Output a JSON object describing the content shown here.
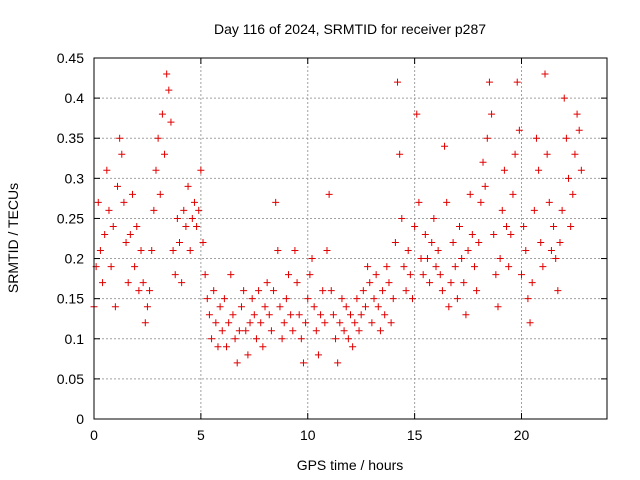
{
  "chart_data": {
    "type": "scatter",
    "title": "Day 116 of 2024, SRMTID for receiver p287",
    "xlabel": "GPS time / hours",
    "ylabel": "SRMTID / TECUs",
    "xlim": [
      0,
      24
    ],
    "ylim": [
      0,
      0.45
    ],
    "x_ticks": [
      0,
      5,
      10,
      15,
      20
    ],
    "x_tick_labels": [
      "0",
      "5",
      "10",
      "15",
      "20"
    ],
    "y_ticks": [
      0,
      0.05,
      0.1,
      0.15,
      0.2,
      0.25,
      0.3,
      0.35,
      0.4,
      0.45
    ],
    "y_tick_labels": [
      "0",
      "0.05",
      "0.1",
      "0.15",
      "0.2",
      "0.25",
      "0.3",
      "0.35",
      "0.4",
      "0.45"
    ],
    "grid": true,
    "marker": "+",
    "color": "#e00000",
    "series": [
      {
        "name": "SRMTID",
        "points": [
          [
            0.0,
            0.14
          ],
          [
            0.1,
            0.19
          ],
          [
            0.2,
            0.27
          ],
          [
            0.3,
            0.21
          ],
          [
            0.4,
            0.17
          ],
          [
            0.5,
            0.23
          ],
          [
            0.6,
            0.31
          ],
          [
            0.7,
            0.26
          ],
          [
            0.8,
            0.19
          ],
          [
            0.9,
            0.24
          ],
          [
            1.0,
            0.14
          ],
          [
            1.1,
            0.29
          ],
          [
            1.2,
            0.35
          ],
          [
            1.3,
            0.33
          ],
          [
            1.4,
            0.27
          ],
          [
            1.5,
            0.22
          ],
          [
            1.6,
            0.17
          ],
          [
            1.7,
            0.23
          ],
          [
            1.8,
            0.28
          ],
          [
            1.9,
            0.19
          ],
          [
            2.0,
            0.24
          ],
          [
            2.1,
            0.16
          ],
          [
            2.2,
            0.21
          ],
          [
            2.3,
            0.17
          ],
          [
            2.4,
            0.12
          ],
          [
            2.5,
            0.14
          ],
          [
            2.6,
            0.16
          ],
          [
            2.7,
            0.21
          ],
          [
            2.8,
            0.26
          ],
          [
            2.9,
            0.31
          ],
          [
            3.0,
            0.35
          ],
          [
            3.1,
            0.28
          ],
          [
            3.2,
            0.38
          ],
          [
            3.3,
            0.33
          ],
          [
            3.4,
            0.43
          ],
          [
            3.5,
            0.41
          ],
          [
            3.6,
            0.37
          ],
          [
            3.7,
            0.21
          ],
          [
            3.8,
            0.18
          ],
          [
            3.9,
            0.25
          ],
          [
            4.0,
            0.22
          ],
          [
            4.1,
            0.17
          ],
          [
            4.2,
            0.26
          ],
          [
            4.3,
            0.24
          ],
          [
            4.4,
            0.29
          ],
          [
            4.5,
            0.21
          ],
          [
            4.6,
            0.25
          ],
          [
            4.7,
            0.27
          ],
          [
            4.8,
            0.24
          ],
          [
            4.9,
            0.26
          ],
          [
            5.0,
            0.31
          ],
          [
            5.1,
            0.22
          ],
          [
            5.2,
            0.18
          ],
          [
            5.3,
            0.15
          ],
          [
            5.4,
            0.13
          ],
          [
            5.5,
            0.1
          ],
          [
            5.6,
            0.16
          ],
          [
            5.7,
            0.12
          ],
          [
            5.8,
            0.09
          ],
          [
            5.9,
            0.14
          ],
          [
            6.0,
            0.11
          ],
          [
            6.1,
            0.15
          ],
          [
            6.2,
            0.09
          ],
          [
            6.3,
            0.12
          ],
          [
            6.4,
            0.18
          ],
          [
            6.5,
            0.13
          ],
          [
            6.6,
            0.1
          ],
          [
            6.7,
            0.07
          ],
          [
            6.8,
            0.11
          ],
          [
            6.9,
            0.14
          ],
          [
            7.0,
            0.16
          ],
          [
            7.1,
            0.11
          ],
          [
            7.2,
            0.08
          ],
          [
            7.3,
            0.12
          ],
          [
            7.4,
            0.15
          ],
          [
            7.5,
            0.13
          ],
          [
            7.6,
            0.1
          ],
          [
            7.7,
            0.16
          ],
          [
            7.8,
            0.12
          ],
          [
            7.9,
            0.09
          ],
          [
            8.0,
            0.14
          ],
          [
            8.1,
            0.17
          ],
          [
            8.2,
            0.13
          ],
          [
            8.3,
            0.11
          ],
          [
            8.4,
            0.16
          ],
          [
            8.5,
            0.27
          ],
          [
            8.6,
            0.21
          ],
          [
            8.7,
            0.14
          ],
          [
            8.8,
            0.1
          ],
          [
            8.9,
            0.12
          ],
          [
            9.0,
            0.15
          ],
          [
            9.1,
            0.18
          ],
          [
            9.2,
            0.13
          ],
          [
            9.3,
            0.11
          ],
          [
            9.4,
            0.21
          ],
          [
            9.5,
            0.17
          ],
          [
            9.6,
            0.13
          ],
          [
            9.7,
            0.1
          ],
          [
            9.8,
            0.07
          ],
          [
            9.9,
            0.12
          ],
          [
            10.0,
            0.15
          ],
          [
            10.1,
            0.18
          ],
          [
            10.2,
            0.2
          ],
          [
            10.3,
            0.14
          ],
          [
            10.4,
            0.11
          ],
          [
            10.5,
            0.08
          ],
          [
            10.6,
            0.13
          ],
          [
            10.7,
            0.16
          ],
          [
            10.8,
            0.12
          ],
          [
            10.9,
            0.21
          ],
          [
            11.0,
            0.28
          ],
          [
            11.1,
            0.16
          ],
          [
            11.2,
            0.13
          ],
          [
            11.3,
            0.1
          ],
          [
            11.4,
            0.07
          ],
          [
            11.5,
            0.12
          ],
          [
            11.6,
            0.15
          ],
          [
            11.7,
            0.11
          ],
          [
            11.8,
            0.14
          ],
          [
            11.9,
            0.1
          ],
          [
            12.0,
            0.13
          ],
          [
            12.1,
            0.09
          ],
          [
            12.2,
            0.12
          ],
          [
            12.3,
            0.15
          ],
          [
            12.4,
            0.11
          ],
          [
            12.5,
            0.13
          ],
          [
            12.6,
            0.16
          ],
          [
            12.7,
            0.14
          ],
          [
            12.8,
            0.19
          ],
          [
            12.9,
            0.17
          ],
          [
            13.0,
            0.12
          ],
          [
            13.1,
            0.15
          ],
          [
            13.2,
            0.18
          ],
          [
            13.3,
            0.14
          ],
          [
            13.4,
            0.11
          ],
          [
            13.5,
            0.16
          ],
          [
            13.6,
            0.13
          ],
          [
            13.7,
            0.19
          ],
          [
            13.8,
            0.17
          ],
          [
            13.9,
            0.12
          ],
          [
            14.0,
            0.15
          ],
          [
            14.1,
            0.22
          ],
          [
            14.2,
            0.42
          ],
          [
            14.3,
            0.33
          ],
          [
            14.4,
            0.25
          ],
          [
            14.5,
            0.19
          ],
          [
            14.6,
            0.16
          ],
          [
            14.7,
            0.21
          ],
          [
            14.8,
            0.18
          ],
          [
            14.9,
            0.15
          ],
          [
            15.0,
            0.24
          ],
          [
            15.1,
            0.38
          ],
          [
            15.2,
            0.27
          ],
          [
            15.3,
            0.2
          ],
          [
            15.4,
            0.18
          ],
          [
            15.5,
            0.23
          ],
          [
            15.6,
            0.2
          ],
          [
            15.7,
            0.17
          ],
          [
            15.8,
            0.22
          ],
          [
            15.9,
            0.25
          ],
          [
            16.0,
            0.19
          ],
          [
            16.1,
            0.21
          ],
          [
            16.2,
            0.18
          ],
          [
            16.3,
            0.16
          ],
          [
            16.4,
            0.34
          ],
          [
            16.5,
            0.27
          ],
          [
            16.6,
            0.14
          ],
          [
            16.7,
            0.17
          ],
          [
            16.8,
            0.22
          ],
          [
            16.9,
            0.19
          ],
          [
            17.0,
            0.15
          ],
          [
            17.1,
            0.24
          ],
          [
            17.2,
            0.2
          ],
          [
            17.3,
            0.17
          ],
          [
            17.4,
            0.13
          ],
          [
            17.5,
            0.21
          ],
          [
            17.6,
            0.28
          ],
          [
            17.7,
            0.23
          ],
          [
            17.8,
            0.19
          ],
          [
            17.9,
            0.16
          ],
          [
            18.0,
            0.22
          ],
          [
            18.1,
            0.27
          ],
          [
            18.2,
            0.32
          ],
          [
            18.3,
            0.29
          ],
          [
            18.4,
            0.35
          ],
          [
            18.5,
            0.42
          ],
          [
            18.6,
            0.38
          ],
          [
            18.7,
            0.23
          ],
          [
            18.8,
            0.18
          ],
          [
            18.9,
            0.14
          ],
          [
            19.0,
            0.2
          ],
          [
            19.1,
            0.26
          ],
          [
            19.2,
            0.31
          ],
          [
            19.3,
            0.24
          ],
          [
            19.4,
            0.19
          ],
          [
            19.5,
            0.23
          ],
          [
            19.6,
            0.28
          ],
          [
            19.7,
            0.33
          ],
          [
            19.8,
            0.42
          ],
          [
            19.9,
            0.36
          ],
          [
            20.0,
            0.18
          ],
          [
            20.1,
            0.24
          ],
          [
            20.2,
            0.21
          ],
          [
            20.3,
            0.15
          ],
          [
            20.4,
            0.12
          ],
          [
            20.5,
            0.17
          ],
          [
            20.6,
            0.26
          ],
          [
            20.7,
            0.35
          ],
          [
            20.8,
            0.31
          ],
          [
            20.9,
            0.22
          ],
          [
            21.0,
            0.19
          ],
          [
            21.1,
            0.43
          ],
          [
            21.2,
            0.33
          ],
          [
            21.3,
            0.27
          ],
          [
            21.4,
            0.21
          ],
          [
            21.5,
            0.24
          ],
          [
            21.6,
            0.2
          ],
          [
            21.7,
            0.16
          ],
          [
            21.8,
            0.22
          ],
          [
            21.9,
            0.26
          ],
          [
            22.0,
            0.4
          ],
          [
            22.1,
            0.35
          ],
          [
            22.2,
            0.3
          ],
          [
            22.3,
            0.24
          ],
          [
            22.4,
            0.28
          ],
          [
            22.5,
            0.33
          ],
          [
            22.6,
            0.38
          ],
          [
            22.7,
            0.36
          ],
          [
            22.8,
            0.31
          ]
        ]
      }
    ]
  }
}
